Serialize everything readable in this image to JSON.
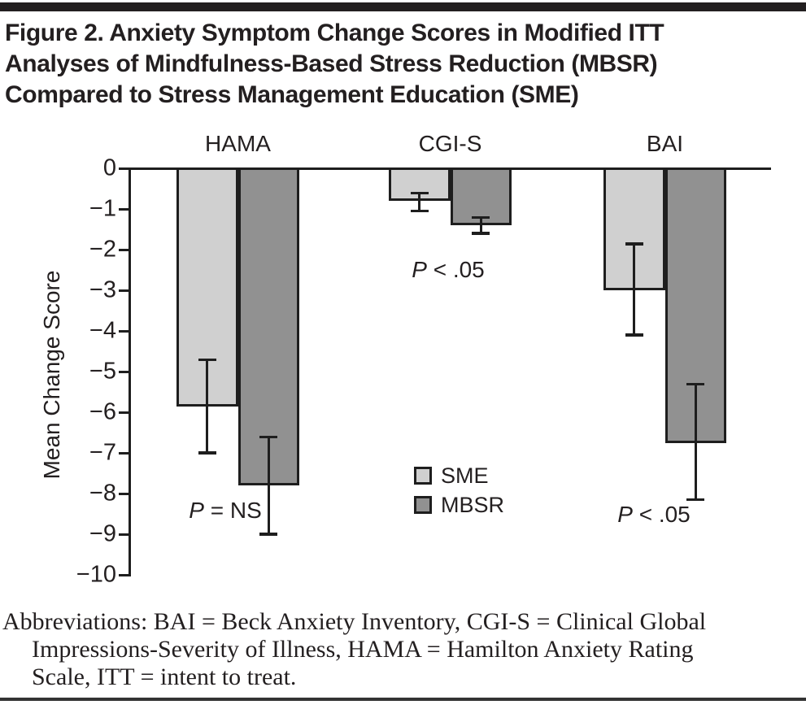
{
  "header": {
    "title_lines": [
      "Figure 2. Anxiety Symptom Change Scores in Modified ITT",
      "Analyses of Mindfulness-Based Stress Reduction (MBSR)",
      "Compared to Stress Management Education (SME)"
    ]
  },
  "chart_data": {
    "type": "bar",
    "categories": [
      "HAMA",
      "CGI-S",
      "BAI"
    ],
    "series": [
      {
        "name": "SME",
        "color": "#d0d0d0",
        "values": [
          -5.85,
          -0.8,
          -3.0
        ],
        "error_high": [
          -4.7,
          -0.6,
          -1.85
        ],
        "error_low": [
          -7.0,
          -1.05,
          -4.1
        ]
      },
      {
        "name": "MBSR",
        "color": "#919191",
        "values": [
          -7.8,
          -1.4,
          -6.75
        ],
        "error_high": [
          -6.6,
          -1.2,
          -5.3
        ],
        "error_low": [
          -9.0,
          -1.6,
          -8.15
        ]
      }
    ],
    "annotations": [
      {
        "italic": "P",
        "rest": " = NS"
      },
      {
        "italic": "P",
        "rest": " < .05"
      },
      {
        "italic": "P",
        "rest": " < .05"
      }
    ],
    "ylabel": "Mean Change Score",
    "ylim": [
      0,
      -10
    ],
    "yticks": [
      "0",
      "−1",
      "−2",
      "−3",
      "−4",
      "−5",
      "−6",
      "−7",
      "−8",
      "−9",
      "−10"
    ],
    "grid": false,
    "legend_position": "inside-lower-middle",
    "bar_outline_color": "#1e1e1e"
  },
  "footnote": {
    "lines": [
      "Abbreviations: BAI = Beck Anxiety Inventory, CGI-S = Clinical Global",
      "Impressions-Severity of Illness, HAMA = Hamilton Anxiety Rating",
      "Scale, ITT = intent to treat."
    ]
  }
}
